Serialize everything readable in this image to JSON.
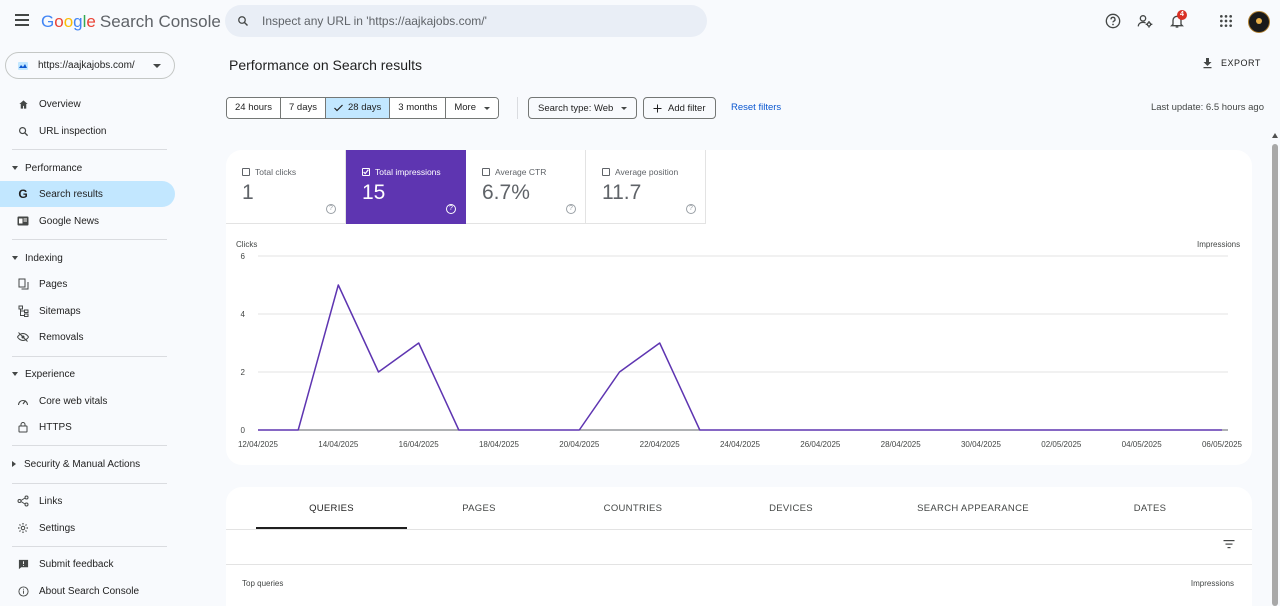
{
  "app": {
    "logo_google": [
      "G",
      "o",
      "o",
      "g",
      "l",
      "e"
    ],
    "logo_product": "Search Console"
  },
  "search": {
    "placeholder": "Inspect any URL in 'https://aajkajobs.com/'"
  },
  "topbar": {
    "icons": [
      "help-icon",
      "manage-users-icon",
      "notifications-icon",
      "apps-icon",
      "account-avatar"
    ],
    "notification_count": "4"
  },
  "property": {
    "url": "https://aajkajobs.com/"
  },
  "sidebar": {
    "overview": "Overview",
    "url_inspection": "URL inspection",
    "performance": "Performance",
    "search_results": "Search results",
    "google_news": "Google News",
    "indexing": "Indexing",
    "pages": "Pages",
    "sitemaps": "Sitemaps",
    "removals": "Removals",
    "experience": "Experience",
    "core_web_vitals": "Core web vitals",
    "https": "HTTPS",
    "security": "Security & Manual Actions",
    "links": "Links",
    "settings": "Settings",
    "submit_feedback": "Submit feedback",
    "about": "About Search Console"
  },
  "header": {
    "title": "Performance on Search results",
    "export": "EXPORT"
  },
  "filters": {
    "date_ranges": [
      "24 hours",
      "7 days",
      "28 days",
      "3 months",
      "More"
    ],
    "selected_date_range": "28 days",
    "search_type": "Search type: Web",
    "add_filter": "Add filter",
    "reset": "Reset filters",
    "last_update": "Last update: 6.5 hours ago"
  },
  "metrics": [
    {
      "label": "Total clicks",
      "value": "1",
      "checked": false
    },
    {
      "label": "Total impressions",
      "value": "15",
      "checked": true
    },
    {
      "label": "Average CTR",
      "value": "6.7%",
      "checked": false
    },
    {
      "label": "Average position",
      "value": "11.7",
      "checked": false
    }
  ],
  "chart_data": {
    "type": "line",
    "ylabel_left": "Clicks",
    "ylabel_right": "Impressions",
    "ylim": [
      0,
      6
    ],
    "yticks": [
      "0",
      "2",
      "4",
      "6"
    ],
    "grid": true,
    "x_tick_labels": [
      "12/04/2025",
      "14/04/2025",
      "16/04/2025",
      "18/04/2025",
      "20/04/2025",
      "22/04/2025",
      "24/04/2025",
      "26/04/2025",
      "28/04/2025",
      "30/04/2025",
      "02/05/2025",
      "04/05/2025",
      "06/05/2025"
    ],
    "series": [
      {
        "color": "#5e35b1",
        "x": [
          "12/04/2025",
          "13/04/2025",
          "14/04/2025",
          "15/04/2025",
          "16/04/2025",
          "17/04/2025",
          "18/04/2025",
          "19/04/2025",
          "20/04/2025",
          "21/04/2025",
          "22/04/2025",
          "23/04/2025",
          "24/04/2025",
          "25/04/2025",
          "26/04/2025",
          "27/04/2025",
          "28/04/2025",
          "29/04/2025",
          "30/04/2025",
          "01/05/2025",
          "02/05/2025",
          "03/05/2025",
          "04/05/2025",
          "05/05/2025",
          "06/05/2025"
        ],
        "values": [
          0,
          0,
          5,
          2,
          3,
          0,
          0,
          0,
          0,
          2,
          3,
          0,
          0,
          0,
          0,
          0,
          0,
          0,
          0,
          0,
          0,
          0,
          0,
          0,
          0
        ]
      }
    ]
  },
  "tabs": [
    "QUERIES",
    "PAGES",
    "COUNTRIES",
    "DEVICES",
    "SEARCH APPEARANCE",
    "DATES"
  ],
  "table": {
    "left_header": "Top queries",
    "right_header": "Impressions"
  }
}
